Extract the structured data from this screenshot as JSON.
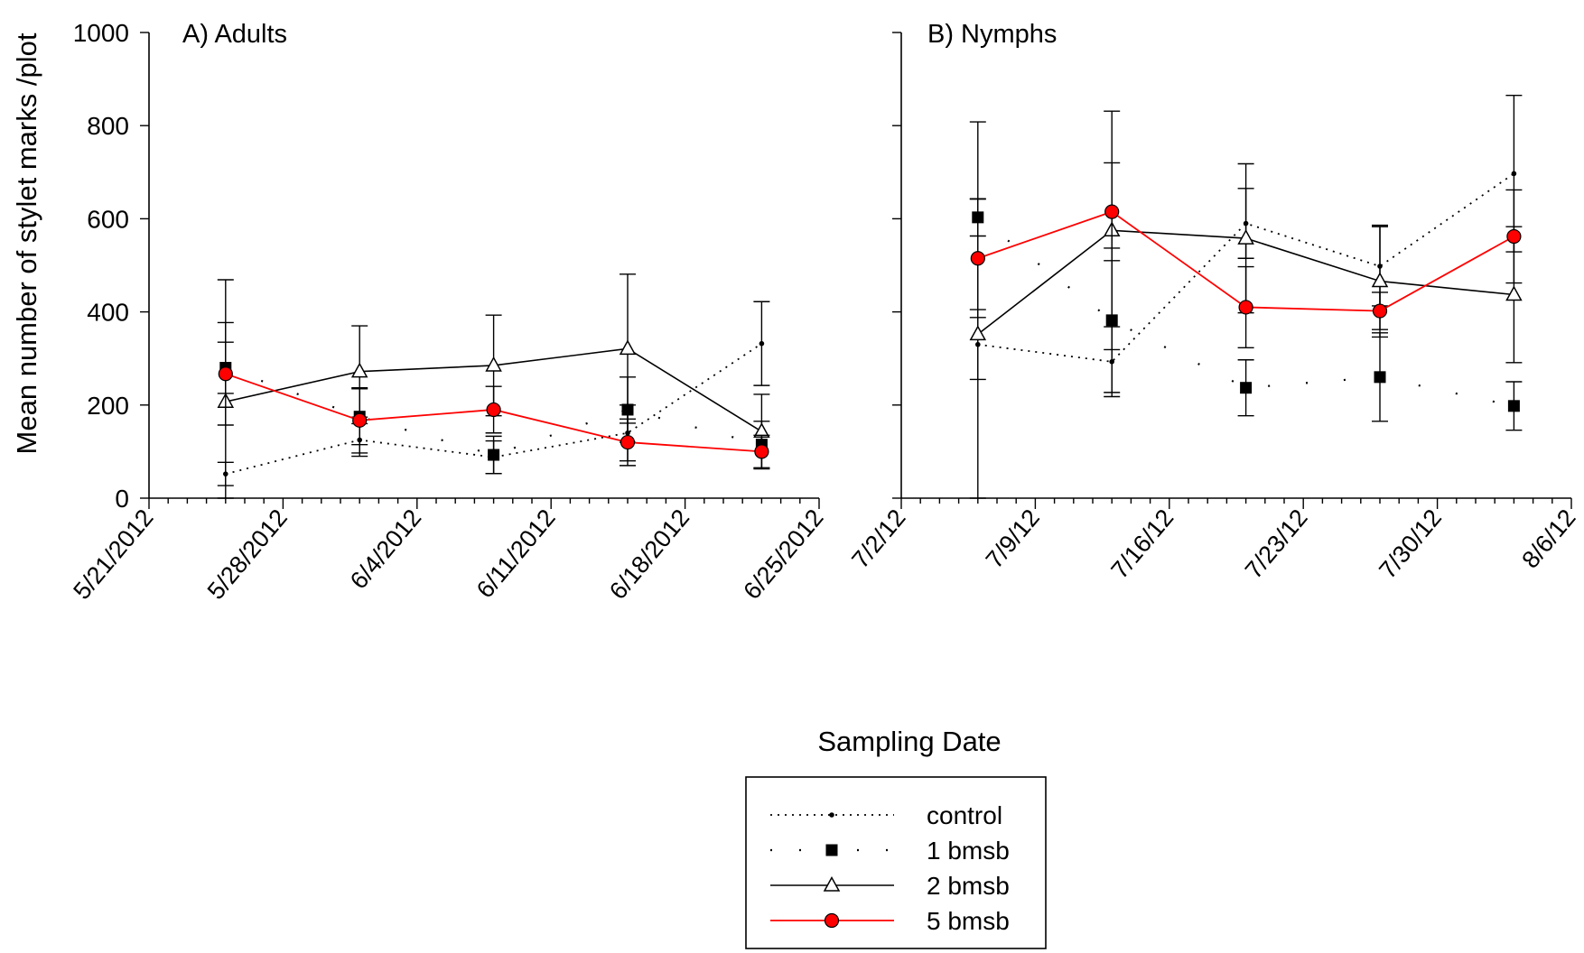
{
  "chart_data": {
    "type": "line",
    "ylabel": "Mean number of stylet marks /plot",
    "xlabel": "Sampling Date",
    "ylim": [
      0,
      1000
    ],
    "yticks": [
      "0",
      "200",
      "400",
      "600",
      "800",
      "1000"
    ],
    "legend": {
      "placement": "bottom-center",
      "entries": [
        "control",
        "1 bmsb",
        "2 bmsb",
        "5 bmsb"
      ]
    },
    "colors": {
      "control": "#000000",
      "1 bmsb": "#000000",
      "2 bmsb": "#000000",
      "5 bmsb": "#ff0000"
    },
    "panels": [
      {
        "title": "A) Adults",
        "xlim": [
          "5/21/2012",
          "6/25/2012"
        ],
        "xticklabels": [
          "5/21/2012",
          "5/28/2012",
          "6/4/2012",
          "6/11/2012",
          "6/18/2012",
          "6/25/2012"
        ],
        "x": [
          "5/25/2012",
          "6/1/2012",
          "6/8/2012",
          "6/15/2012",
          "6/22/2012"
        ],
        "series": [
          {
            "name": "control",
            "values": [
              52,
              125,
              88,
              140,
              332
            ],
            "err": [
              25,
              35,
              35,
              60,
              90
            ]
          },
          {
            "name": "1 bmsb",
            "values": [
              280,
              175,
              93,
              190,
              115
            ],
            "err": [
              55,
              60,
              40,
              70,
              50
            ]
          },
          {
            "name": "2 bmsb",
            "values": [
              207,
              272,
              285,
              321,
              143
            ],
            "err": [
              262,
              98,
              108,
              160,
              80
            ]
          },
          {
            "name": "5 bmsb",
            "values": [
              267,
              167,
              190,
              120,
              100
            ],
            "err": [
              110,
              70,
              50,
              50,
              35
            ]
          }
        ]
      },
      {
        "title": "B) Nymphs",
        "xlim": [
          "7/2/12",
          "8/6/12"
        ],
        "xticklabels": [
          "7/2/12",
          "7/9/12",
          "7/16/12",
          "7/23/12",
          "7/30/12",
          "8/6/12"
        ],
        "x": [
          "7/6/12",
          "7/13/12",
          "7/20/12",
          "7/27/12",
          "8/3/12"
        ],
        "series": [
          {
            "name": "control",
            "values": [
              330,
              293,
              590,
              498,
              697
            ],
            "err": [
              75,
              75,
              75,
              85,
              168
            ]
          },
          {
            "name": "1 bmsb",
            "values": [
              603,
              382,
              237,
              260,
              198
            ],
            "err": [
              40,
              155,
              60,
              95,
              52
            ]
          },
          {
            "name": "2 bmsb",
            "values": [
              352,
              575,
              558,
              466,
              437
            ],
            "err": [
              456,
              256,
              160,
              120,
              146
            ]
          },
          {
            "name": "5 bmsb",
            "values": [
              515,
              615,
              410,
              402,
              562
            ],
            "err": [
              127,
              105,
              87,
              40,
              100
            ]
          }
        ]
      }
    ]
  }
}
